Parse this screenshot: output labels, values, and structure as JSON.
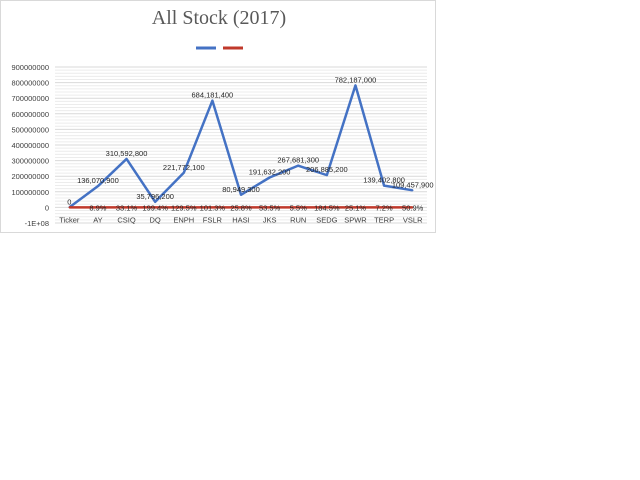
{
  "chart_data": {
    "type": "line",
    "title": "All Stock (2017)",
    "categories": [
      "Ticker",
      "AY",
      "CSIQ",
      "DQ",
      "ENPH",
      "FSLR",
      "HASI",
      "JKS",
      "RUN",
      "SEDG",
      "SPWR",
      "TERP",
      "VSLR"
    ],
    "ylim": [
      -100000000,
      900000000
    ],
    "y_ticks": [
      "900000000",
      "800000000",
      "700000000",
      "600000000",
      "500000000",
      "400000000",
      "300000000",
      "200000000",
      "100000000",
      "0",
      "-1E+08"
    ],
    "y_tick_values": [
      900000000,
      800000000,
      700000000,
      600000000,
      500000000,
      400000000,
      300000000,
      200000000,
      100000000,
      0,
      -100000000
    ],
    "grid": true,
    "legend_position": "top",
    "series": [
      {
        "color": "#4472c4",
        "values": [
          0,
          136070900,
          310592800,
          35796200,
          221772100,
          684181400,
          80949300,
          191632200,
          267681300,
          206885200,
          782187000,
          139402800,
          109457900
        ],
        "labels": [
          "0",
          "136,070,900",
          "310,592,800",
          "35,796,200",
          "221,772,100",
          "684,181,400",
          "80,949,300",
          "191,632,200",
          "267,681,300",
          "206,885,200",
          "782,187,000",
          "139,402,800",
          "109,457,900"
        ]
      },
      {
        "color": "#c0392b",
        "values": [
          0,
          0.089,
          0.331,
          1.994,
          1.295,
          1.013,
          0.258,
          0.535,
          0.055,
          1.845,
          0.251,
          0.072,
          0.509
        ],
        "labels": [
          "",
          "8.9%",
          "33.1%",
          "199.4%",
          "129.5%",
          "101.3%",
          "25.8%",
          "53.5%",
          "5.5%",
          "184.5%",
          "25.1%",
          "7.2%",
          "50.9%"
        ]
      }
    ]
  }
}
